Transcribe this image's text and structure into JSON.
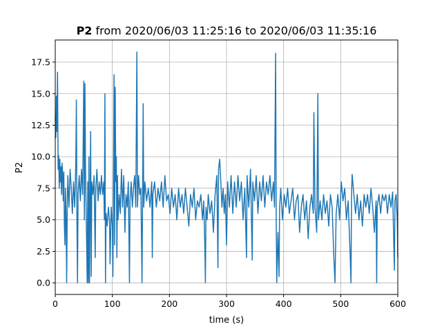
{
  "chart_data": {
    "type": "line",
    "title": [
      "P2",
      "from 2020/06/03 11:25:16 to 2020/06/03 11:35:16"
    ],
    "xlabel": "time (s)",
    "ylabel": "P2",
    "color": "#1f77b4",
    "grid": true,
    "xlim": [
      0,
      600
    ],
    "xticks": [
      0,
      100,
      200,
      300,
      400,
      500,
      600
    ],
    "ylim": [
      -0.92,
      19.25
    ],
    "yticks": [
      {
        "value": 0,
        "label": "0.0"
      },
      {
        "value": 2.5,
        "label": "2.5"
      },
      {
        "value": 5,
        "label": "5.0"
      },
      {
        "value": 7.5,
        "label": "7.5"
      },
      {
        "value": 10,
        "label": "10.0"
      },
      {
        "value": 12.5,
        "label": "12.5"
      },
      {
        "value": 15,
        "label": "15.0"
      },
      {
        "value": 17.5,
        "label": "17.5"
      }
    ],
    "x": [
      0,
      1,
      2,
      3,
      4,
      5,
      6,
      7,
      8,
      9,
      10,
      11,
      12,
      13,
      14,
      15,
      16,
      17,
      18,
      19,
      20,
      21,
      22,
      24,
      26,
      28,
      30,
      32,
      34,
      36,
      37,
      38,
      39,
      40,
      42,
      44,
      46,
      48,
      50,
      51,
      52,
      53,
      55,
      56,
      57,
      58,
      59,
      60,
      61,
      62,
      63,
      64,
      66,
      68,
      70,
      71,
      73,
      75,
      77,
      79,
      81,
      83,
      85,
      86,
      87,
      88,
      89,
      91,
      93,
      95,
      96,
      98,
      100,
      101,
      102,
      103,
      104,
      105,
      106,
      107,
      108,
      109,
      110,
      112,
      114,
      116,
      118,
      120,
      122,
      124,
      126,
      128,
      130,
      131,
      133,
      135,
      137,
      139,
      141,
      143,
      144,
      146,
      148,
      150,
      152,
      153,
      154,
      155,
      157,
      160,
      163,
      166,
      169,
      170,
      171,
      174,
      177,
      180,
      183,
      186,
      189,
      192,
      195,
      198,
      201,
      204,
      207,
      210,
      213,
      216,
      219,
      222,
      225,
      228,
      231,
      234,
      237,
      240,
      243,
      246,
      249,
      252,
      255,
      258,
      260,
      262,
      263,
      264,
      266,
      268,
      271,
      274,
      277,
      280,
      283,
      285,
      286,
      288,
      290,
      292,
      294,
      296,
      298,
      300,
      302,
      305,
      308,
      311,
      314,
      317,
      320,
      323,
      326,
      329,
      332,
      335,
      336,
      339,
      342,
      345,
      346,
      349,
      352,
      355,
      358,
      361,
      364,
      367,
      370,
      373,
      376,
      379,
      382,
      384,
      386,
      387,
      388,
      390,
      392,
      393,
      395,
      398,
      401,
      404,
      407,
      410,
      413,
      416,
      419,
      422,
      425,
      428,
      431,
      434,
      437,
      440,
      443,
      446,
      449,
      452,
      453,
      455,
      458,
      460,
      461,
      464,
      467,
      470,
      473,
      476,
      479,
      482,
      485,
      488,
      490,
      492,
      495,
      498,
      501,
      504,
      507,
      510,
      513,
      516,
      518,
      519,
      520,
      523,
      526,
      529,
      532,
      535,
      538,
      541,
      544,
      547,
      550,
      553,
      556,
      559,
      562,
      563,
      564,
      567,
      570,
      573,
      576,
      579,
      582,
      585,
      588,
      591,
      594,
      595,
      597,
      599,
      600
    ],
    "values": [
      13.2,
      11.5,
      14.8,
      12,
      16.7,
      9,
      10.1,
      7.5,
      9.8,
      8,
      9.2,
      7,
      9.5,
      8.5,
      6.5,
      8.8,
      4.5,
      3,
      7.5,
      5,
      0,
      6,
      8.5,
      6,
      9,
      7.5,
      5.5,
      8,
      6,
      9.5,
      14.5,
      5,
      0,
      7,
      8.5,
      6.5,
      9,
      7,
      16,
      5,
      15.8,
      9,
      3,
      0,
      8,
      0,
      10,
      0,
      6,
      12,
      0.5,
      8,
      7,
      8.5,
      2,
      7.5,
      9,
      6.5,
      8,
      7,
      8.5,
      7,
      8,
      5,
      15,
      0,
      5.5,
      4.5,
      6,
      5,
      1.5,
      6,
      4.5,
      0.5,
      8,
      16.5,
      3,
      15.5,
      8,
      10,
      2,
      8.5,
      5,
      7,
      5.5,
      9,
      6,
      8.5,
      4,
      7,
      6,
      8,
      0,
      6.5,
      8,
      6,
      7.5,
      8.5,
      6,
      18.3,
      6,
      8.5,
      7,
      7.5,
      0,
      7,
      14.2,
      6,
      8,
      6.5,
      7.5,
      6,
      8,
      2,
      7,
      8,
      6,
      7.5,
      6.5,
      8,
      6,
      8.5,
      6.5,
      7,
      5.5,
      7.5,
      6,
      7,
      5,
      7.5,
      6,
      7,
      5.5,
      7.5,
      6,
      4.5,
      7,
      6,
      7.5,
      5,
      6.5,
      6,
      7,
      5,
      6.5,
      3,
      0,
      6,
      5,
      7,
      5.5,
      6.5,
      4,
      7,
      8.5,
      1.2,
      9,
      9.8,
      8,
      6,
      7.5,
      5.5,
      7,
      3,
      8,
      6,
      8.5,
      5.5,
      8,
      6,
      8.5,
      6.5,
      8,
      5,
      7.5,
      2,
      8.5,
      6,
      9,
      1.8,
      8,
      6.5,
      8.5,
      5.5,
      8,
      6.5,
      8.5,
      6,
      8,
      7,
      8.5,
      6.5,
      8,
      6,
      18.2,
      5,
      0,
      4,
      0.5,
      6,
      7.5,
      5,
      7,
      6,
      7.5,
      5.5,
      6.5,
      7.5,
      5,
      6.5,
      7,
      4,
      6,
      7,
      5,
      6.5,
      3.5,
      6,
      7,
      5.5,
      13.5,
      6,
      4,
      15,
      5,
      6.5,
      5,
      7,
      5.5,
      6.5,
      4.5,
      7,
      6,
      2,
      0,
      5.5,
      7,
      5,
      8,
      6.5,
      7.5,
      5,
      6.5,
      3,
      0,
      7,
      8.6,
      7,
      5.5,
      7,
      5,
      6.5,
      4.5,
      7,
      6,
      7,
      5.5,
      7.5,
      6,
      4,
      6.5,
      0,
      6,
      7,
      5.5,
      7,
      6.5,
      7,
      5.5,
      7,
      6,
      7.2,
      1,
      6.5,
      7,
      5,
      2
    ]
  }
}
